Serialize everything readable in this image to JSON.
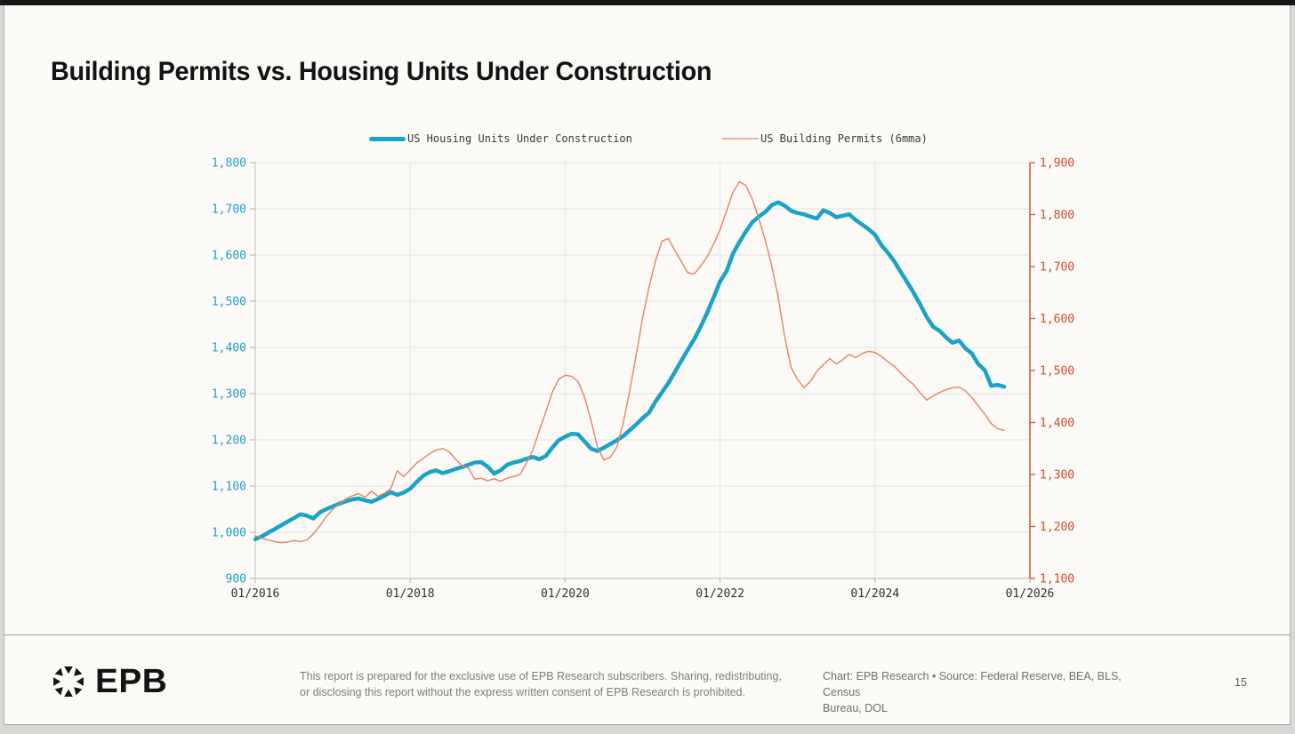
{
  "page": {
    "title": "Building Permits vs. Housing Units Under Construction",
    "page_number": "15"
  },
  "legend": [
    {
      "label": "US Housing Units Under Construction",
      "color": "#1aa2c8"
    },
    {
      "label": "US Building Permits (6mma)",
      "color": "#f0b097"
    }
  ],
  "footer": {
    "brand": "EPB",
    "disclaimer_line1": "This report is prepared for the exclusive use of EPB Research subscribers. Sharing, redistributing,",
    "disclaimer_line2": "or disclosing this report without the express written consent of EPB Research is prohibited.",
    "source_line1": "Chart: EPB Research  •  Source: Federal Reserve, BEA, BLS, Census",
    "source_line2": "Bureau, DOL"
  },
  "chart_data": {
    "type": "line",
    "title": "Building Permits vs. Housing Units Under Construction",
    "grid": true,
    "legend_position": "top",
    "x_axis": {
      "min": 2016,
      "max": 2026,
      "tick_years": [
        2016,
        2018,
        2020,
        2022,
        2024,
        2026
      ],
      "tick_labels": [
        "01/2016",
        "01/2018",
        "01/2020",
        "01/2022",
        "01/2024",
        "01/2026"
      ],
      "label_color": "#2f2f2f",
      "axis_color": "#c9c8c4"
    },
    "y_left": {
      "min": 900,
      "max": 1800,
      "step": 100,
      "ticks": [
        900,
        1000,
        1100,
        1200,
        1300,
        1400,
        1500,
        1600,
        1700,
        1800
      ],
      "color": "#1b9fc6",
      "axis_color": "#c9c8c4"
    },
    "y_right": {
      "min": 1100,
      "max": 1900,
      "step": 100,
      "ticks": [
        1100,
        1200,
        1300,
        1400,
        1500,
        1600,
        1700,
        1800,
        1900
      ],
      "color": "#cc4b27",
      "axis_color": "#cc4b27"
    },
    "series": [
      {
        "name": "US Housing Units Under Construction",
        "axis": "left",
        "color": "#1aa2c8",
        "stroke_width": 4.5,
        "start_year": 2016,
        "interval_months": 1,
        "values": [
          985,
          991,
          999,
          1007,
          1015,
          1023,
          1031,
          1039,
          1036,
          1030,
          1043,
          1050,
          1056,
          1062,
          1067,
          1071,
          1073,
          1069,
          1066,
          1072,
          1079,
          1087,
          1081,
          1086,
          1094,
          1109,
          1122,
          1130,
          1134,
          1128,
          1132,
          1137,
          1141,
          1146,
          1151,
          1152,
          1142,
          1127,
          1134,
          1146,
          1151,
          1154,
          1159,
          1163,
          1158,
          1165,
          1183,
          1199,
          1207,
          1213,
          1212,
          1197,
          1181,
          1176,
          1183,
          1191,
          1199,
          1208,
          1221,
          1233,
          1247,
          1259,
          1283,
          1303,
          1323,
          1347,
          1371,
          1395,
          1418,
          1445,
          1475,
          1508,
          1543,
          1565,
          1603,
          1628,
          1651,
          1671,
          1683,
          1693,
          1708,
          1714,
          1707,
          1696,
          1691,
          1688,
          1683,
          1679,
          1697,
          1691,
          1682,
          1685,
          1688,
          1676,
          1666,
          1656,
          1644,
          1621,
          1605,
          1586,
          1563,
          1541,
          1518,
          1493,
          1466,
          1445,
          1436,
          1422,
          1410,
          1415,
          1398,
          1387,
          1364,
          1351,
          1317,
          1319,
          1315
        ]
      },
      {
        "name": "US Building Permits (6mma)",
        "axis": "right",
        "color": "#e5825f",
        "stroke_width": 1.4,
        "start_year": 2016,
        "interval_months": 1,
        "values": [
          1182,
          1178,
          1174,
          1171,
          1169,
          1170,
          1173,
          1171,
          1174,
          1186,
          1201,
          1219,
          1233,
          1244,
          1253,
          1259,
          1263,
          1256,
          1268,
          1258,
          1264,
          1273,
          1307,
          1296,
          1309,
          1322,
          1331,
          1340,
          1347,
          1350,
          1344,
          1330,
          1317,
          1313,
          1291,
          1293,
          1288,
          1292,
          1287,
          1293,
          1296,
          1300,
          1322,
          1347,
          1385,
          1420,
          1458,
          1483,
          1491,
          1489,
          1479,
          1449,
          1405,
          1353,
          1328,
          1333,
          1353,
          1399,
          1461,
          1529,
          1601,
          1661,
          1711,
          1749,
          1754,
          1731,
          1710,
          1688,
          1686,
          1701,
          1719,
          1743,
          1771,
          1807,
          1843,
          1863,
          1856,
          1829,
          1793,
          1751,
          1701,
          1641,
          1566,
          1506,
          1483,
          1467,
          1479,
          1499,
          1511,
          1523,
          1513,
          1521,
          1531,
          1525,
          1533,
          1537,
          1535,
          1527,
          1517,
          1508,
          1495,
          1483,
          1473,
          1457,
          1443,
          1451,
          1458,
          1463,
          1467,
          1468,
          1461,
          1448,
          1432,
          1416,
          1398,
          1388,
          1385
        ]
      }
    ]
  }
}
